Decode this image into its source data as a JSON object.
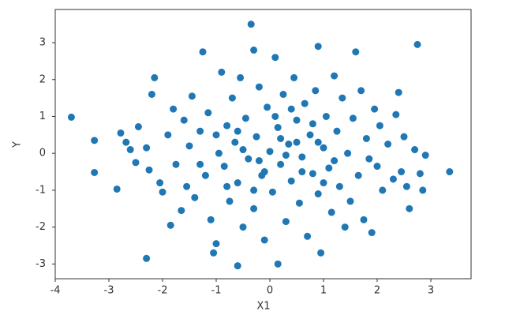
{
  "chart_data": {
    "type": "scatter",
    "x_label": "X1",
    "y_label": "Y",
    "color": "#1f77b4",
    "xlim": [
      -4.0,
      3.75
    ],
    "ylim": [
      -3.4,
      3.9
    ],
    "xticks": [
      -4,
      -3,
      -2,
      -1,
      0,
      1,
      2,
      3
    ],
    "yticks": [
      -3,
      -2,
      -1,
      0,
      1,
      2,
      3
    ],
    "x": [
      -3.7,
      -3.27,
      -3.27,
      -2.85,
      -2.3,
      -2.78,
      -2.68,
      -2.6,
      -2.5,
      -2.45,
      -2.3,
      -2.25,
      -2.2,
      -2.15,
      -2.05,
      -2.0,
      -1.9,
      -1.85,
      -1.8,
      -1.75,
      -1.65,
      -1.6,
      -1.55,
      -1.5,
      -1.45,
      -1.4,
      -1.3,
      -1.25,
      -1.2,
      -1.15,
      -1.1,
      -1.05,
      -1.0,
      -0.95,
      -0.9,
      -0.85,
      -0.8,
      -0.75,
      -0.7,
      -0.65,
      -0.6,
      -0.6,
      -0.55,
      -0.5,
      -0.45,
      -0.4,
      -0.35,
      -0.3,
      -0.3,
      -0.25,
      -0.2,
      -0.15,
      -0.1,
      -0.05,
      0.0,
      0.05,
      0.1,
      0.15,
      0.15,
      0.2,
      0.25,
      0.3,
      0.35,
      0.4,
      0.45,
      0.5,
      0.55,
      0.6,
      0.65,
      0.7,
      0.75,
      0.8,
      0.85,
      0.9,
      0.9,
      0.95,
      1.0,
      1.05,
      1.1,
      1.15,
      1.2,
      1.25,
      1.3,
      1.35,
      1.4,
      1.45,
      1.5,
      1.55,
      1.6,
      1.65,
      1.7,
      1.75,
      1.8,
      1.85,
      1.9,
      1.95,
      2.0,
      2.05,
      2.1,
      2.2,
      2.3,
      2.35,
      2.4,
      2.45,
      2.5,
      2.55,
      2.6,
      2.7,
      2.75,
      2.8,
      2.85,
      2.9,
      3.35,
      -0.5,
      0.3,
      0.5,
      -0.2,
      0.8,
      -0.8,
      0.1,
      0.6,
      -1.0,
      1.2,
      -0.3,
      0.4,
      -0.6,
      0.9,
      -1.3,
      1.0,
      0.2,
      -0.1
    ],
    "y": [
      0.98,
      0.35,
      -0.52,
      -0.97,
      -2.85,
      0.55,
      0.3,
      0.1,
      -0.25,
      0.72,
      0.15,
      -0.45,
      1.6,
      2.05,
      -0.8,
      -1.05,
      0.5,
      -1.95,
      1.2,
      -0.3,
      -1.55,
      0.9,
      -0.9,
      0.2,
      1.55,
      -1.2,
      0.6,
      2.75,
      -0.6,
      1.1,
      -1.8,
      -2.7,
      -2.45,
      0.0,
      2.2,
      -0.35,
      0.75,
      -1.3,
      1.5,
      0.3,
      -3.05,
      -0.8,
      2.05,
      -2.0,
      0.95,
      -0.15,
      3.5,
      2.8,
      -1.5,
      0.45,
      1.8,
      -0.6,
      -2.35,
      1.25,
      0.05,
      -1.05,
      2.6,
      -3.0,
      0.7,
      -0.3,
      1.6,
      -1.85,
      0.25,
      -0.75,
      2.05,
      0.9,
      -1.35,
      -0.1,
      1.35,
      -2.25,
      0.5,
      -0.55,
      1.7,
      2.9,
      -1.1,
      -2.7,
      0.15,
      1.0,
      -0.4,
      -1.6,
      2.1,
      0.6,
      -0.9,
      1.5,
      -2.0,
      0.0,
      -1.3,
      0.95,
      2.75,
      -0.6,
      1.7,
      -1.8,
      0.4,
      -0.15,
      -2.15,
      1.2,
      -0.35,
      0.75,
      -1.0,
      0.25,
      -0.7,
      1.05,
      1.65,
      -0.5,
      0.45,
      -0.9,
      -1.5,
      0.1,
      2.95,
      -0.55,
      -1.0,
      -0.05,
      -0.5,
      0.1,
      -0.05,
      0.3,
      -0.2,
      0.8,
      -0.9,
      1.0,
      -0.5,
      0.5,
      -0.2,
      -1.0,
      1.2,
      0.6,
      0.3,
      -0.3,
      -0.8,
      0.4,
      -0.5
    ]
  }
}
